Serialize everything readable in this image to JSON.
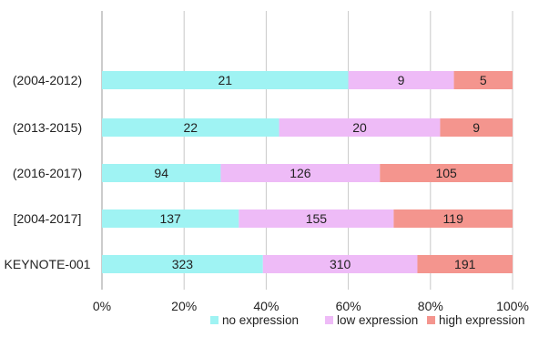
{
  "chart_data": {
    "type": "bar",
    "orientation": "horizontal",
    "stacked": "percent",
    "categories": [
      "(2004-2012)",
      "(2013-2015)",
      "(2016-2017)",
      "[2004-2017]",
      "KEYNOTE-001"
    ],
    "series": [
      {
        "name": "no expression",
        "color": "#9ff3f3",
        "values": [
          21,
          22,
          94,
          137,
          323
        ]
      },
      {
        "name": "low expression",
        "color": "#eebbf7",
        "values": [
          9,
          20,
          126,
          155,
          310
        ]
      },
      {
        "name": "high expression",
        "color": "#f4958e",
        "values": [
          5,
          9,
          105,
          119,
          191
        ]
      }
    ],
    "xlim": [
      0,
      100
    ],
    "x_ticks": [
      "0%",
      "20%",
      "40%",
      "60%",
      "80%",
      "100%"
    ],
    "grid": "vertical",
    "legend_position": "bottom-right"
  }
}
